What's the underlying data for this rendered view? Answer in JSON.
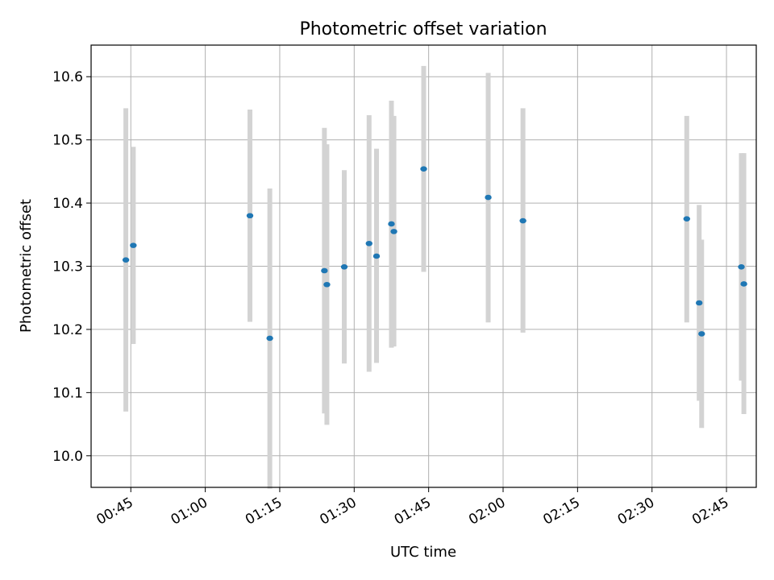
{
  "chart_data": {
    "type": "scatter",
    "title": "Photometric offset variation",
    "xlabel": "UTC time",
    "ylabel": "Photometric offset",
    "grid": true,
    "xlim": [
      "00:37",
      "02:51"
    ],
    "ylim": [
      9.95,
      10.65
    ],
    "xticks": [
      "00:45",
      "01:00",
      "01:15",
      "01:30",
      "01:45",
      "02:00",
      "02:15",
      "02:30",
      "02:45"
    ],
    "yticks": [
      "10.0",
      "10.1",
      "10.2",
      "10.3",
      "10.4",
      "10.5",
      "10.6"
    ],
    "point_color": "#1f77b4",
    "errorbar_color": "#d3d3d3",
    "points": [
      {
        "t": "00:44",
        "y": 10.31,
        "ylo": 10.07,
        "yhi": 10.55
      },
      {
        "t": "00:45:30",
        "y": 10.333,
        "ylo": 10.177,
        "yhi": 10.489
      },
      {
        "t": "01:09",
        "y": 10.38,
        "ylo": 10.212,
        "yhi": 10.548
      },
      {
        "t": "01:13",
        "y": 10.186,
        "ylo": 9.948,
        "yhi": 10.423
      },
      {
        "t": "01:24",
        "y": 10.293,
        "ylo": 10.067,
        "yhi": 10.519
      },
      {
        "t": "01:24:30",
        "y": 10.271,
        "ylo": 10.049,
        "yhi": 10.493
      },
      {
        "t": "01:28",
        "y": 10.299,
        "ylo": 10.146,
        "yhi": 10.452
      },
      {
        "t": "01:33",
        "y": 10.336,
        "ylo": 10.133,
        "yhi": 10.539
      },
      {
        "t": "01:34:30",
        "y": 10.316,
        "ylo": 10.147,
        "yhi": 10.486
      },
      {
        "t": "01:37:30",
        "y": 10.367,
        "ylo": 10.171,
        "yhi": 10.562
      },
      {
        "t": "01:38",
        "y": 10.355,
        "ylo": 10.173,
        "yhi": 10.538
      },
      {
        "t": "01:44",
        "y": 10.454,
        "ylo": 10.291,
        "yhi": 10.617
      },
      {
        "t": "01:57",
        "y": 10.409,
        "ylo": 10.211,
        "yhi": 10.606
      },
      {
        "t": "02:04",
        "y": 10.372,
        "ylo": 10.195,
        "yhi": 10.55
      },
      {
        "t": "02:37",
        "y": 10.375,
        "ylo": 10.211,
        "yhi": 10.538
      },
      {
        "t": "02:39:30",
        "y": 10.242,
        "ylo": 10.087,
        "yhi": 10.397
      },
      {
        "t": "02:40",
        "y": 10.193,
        "ylo": 10.044,
        "yhi": 10.342
      },
      {
        "t": "02:48",
        "y": 10.299,
        "ylo": 10.119,
        "yhi": 10.479
      },
      {
        "t": "02:48:30",
        "y": 10.272,
        "ylo": 10.066,
        "yhi": 10.479
      }
    ]
  }
}
